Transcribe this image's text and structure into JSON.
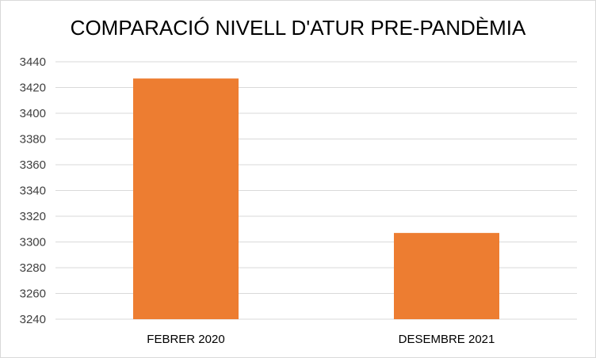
{
  "chart_data": {
    "type": "bar",
    "title": "COMPARACIÓ NIVELL D'ATUR PRE-PANDÈMIA",
    "categories": [
      "FEBRER 2020",
      "DESEMBRE 2021"
    ],
    "values": [
      3427,
      3307
    ],
    "ylim": [
      3240,
      3440
    ],
    "yticks": [
      3240,
      3260,
      3280,
      3300,
      3320,
      3340,
      3360,
      3380,
      3400,
      3420,
      3440
    ],
    "grid": true,
    "legend": "none",
    "bar_color": "#ED7D31",
    "grid_color": "#D9D9D9"
  }
}
